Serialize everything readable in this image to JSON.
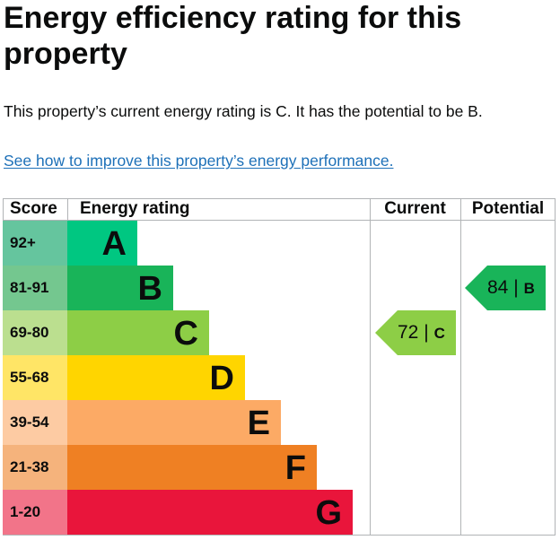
{
  "heading": "Energy efficiency rating for this property",
  "summary": "This property’s current energy rating is C. It has the potential to be B.",
  "improve_link": "See how to improve this property’s energy performance.",
  "table": {
    "headers": {
      "score": "Score",
      "rating": "Energy rating",
      "current": "Current",
      "potential": "Potential"
    },
    "bands": [
      {
        "score": "92+",
        "letter": "A",
        "bar_color": "#00c781",
        "score_color": "#65c59e"
      },
      {
        "score": "81-91",
        "letter": "B",
        "bar_color": "#19b459",
        "score_color": "#74c78f"
      },
      {
        "score": "69-80",
        "letter": "C",
        "bar_color": "#8dce46",
        "score_color": "#bbdf8f"
      },
      {
        "score": "55-68",
        "letter": "D",
        "bar_color": "#ffd500",
        "score_color": "#ffe566"
      },
      {
        "score": "39-54",
        "letter": "E",
        "bar_color": "#fcaa65",
        "score_color": "#fdcba3"
      },
      {
        "score": "21-38",
        "letter": "F",
        "bar_color": "#ef8023",
        "score_color": "#f5b37c"
      },
      {
        "score": "1-20",
        "letter": "G",
        "bar_color": "#e9153b",
        "score_color": "#f27489"
      }
    ],
    "current": {
      "score": "72",
      "separator": " |",
      "letter": "C",
      "color": "#8dce46"
    },
    "potential": {
      "score": "84",
      "separator": " |",
      "letter": "B",
      "color": "#19b459"
    }
  }
}
